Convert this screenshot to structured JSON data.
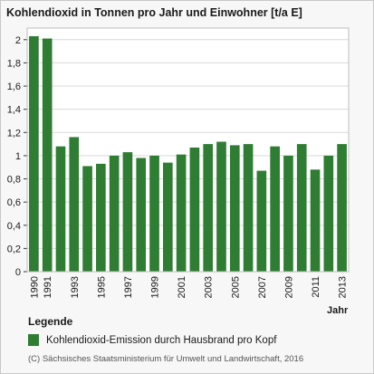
{
  "chart_data": {
    "type": "bar",
    "title": "Kohlendioxid in Tonnen pro Jahr und Einwohner [t/a E]",
    "xlabel": "Jahr",
    "ylabel": "",
    "categories": [
      "1990",
      "1991",
      "1992",
      "1993",
      "1994",
      "1995",
      "1996",
      "1997",
      "1998",
      "1999",
      "2000",
      "2001",
      "2002",
      "2003",
      "2004",
      "2005",
      "2006",
      "2007",
      "2008",
      "2009",
      "2010",
      "2011",
      "2012",
      "2013"
    ],
    "x_tick_labels": [
      "1990",
      "1991",
      "1993",
      "1995",
      "1997",
      "1999",
      "2001",
      "2003",
      "2005",
      "2007",
      "2009",
      "2011",
      "2013"
    ],
    "series": [
      {
        "name": "Kohlendioxid-Emission durch Hausbrand pro Kopf",
        "values": [
          2.03,
          2.01,
          1.08,
          1.16,
          0.91,
          0.93,
          1.0,
          1.03,
          0.98,
          1.0,
          0.94,
          1.01,
          1.07,
          1.1,
          1.12,
          1.09,
          1.1,
          0.87,
          1.08,
          1.0,
          1.1,
          0.88,
          1.0,
          1.1
        ]
      }
    ],
    "ylim": [
      0,
      2.1
    ],
    "y_ticks": [
      0,
      0.2,
      0.4,
      0.6,
      0.8,
      1,
      1.2,
      1.4,
      1.6,
      1.8,
      2
    ],
    "y_tick_labels": [
      "0",
      "0,2",
      "0,4",
      "0,6",
      "0,8",
      "1",
      "1,2",
      "1,4",
      "1,6",
      "1,8",
      "2"
    ],
    "grid": "horizontal",
    "bar_color": "#2e7d32",
    "legend_position": "bottom-left"
  },
  "legend": {
    "title": "Legende",
    "item_label": "Kohlendioxid-Emission durch Hausbrand pro Kopf",
    "swatch_color": "#2e7d32"
  },
  "footer": {
    "copyright": "(C) Sächsisches Staatsministerium für Umwelt und Landwirtschaft, 2016"
  }
}
